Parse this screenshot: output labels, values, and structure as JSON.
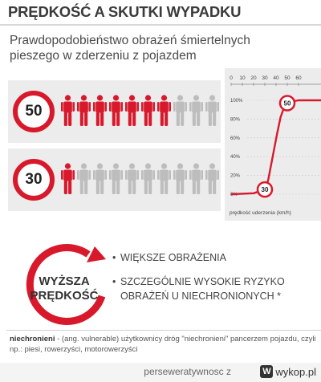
{
  "title": "PRĘDKOŚĆ A SKUTKI WYPADKU",
  "subtitle": "Prawdopodobieństwo obrażeń śmiertelnych pieszego w zderzeniu z pojazdem",
  "rows": [
    {
      "speed": "50",
      "red": 7,
      "total": 10
    },
    {
      "speed": "30",
      "red": 1,
      "total": 10
    }
  ],
  "colors": {
    "accent": "#d8192c",
    "grey": "#bdbdbd",
    "panel": "#ececec"
  },
  "chart_data": {
    "type": "line",
    "x_ticks": [
      "0",
      "10",
      "20",
      "30",
      "40",
      "50",
      "60"
    ],
    "y_ticks": [
      "100%",
      "80%",
      "60%",
      "40%",
      "20%",
      "0%"
    ],
    "xlabel": "prędkość uderzenia (km/h)",
    "xlim": [
      0,
      60
    ],
    "ylim": [
      0,
      100
    ],
    "x": [
      0,
      20,
      30,
      33,
      37,
      41,
      44,
      47,
      50,
      55,
      60
    ],
    "y": [
      0,
      1,
      5,
      15,
      40,
      65,
      82,
      92,
      97,
      99,
      100
    ],
    "markers": [
      {
        "label": "30",
        "x": 30,
        "y": 5
      },
      {
        "label": "50",
        "x": 50,
        "y": 97
      }
    ]
  },
  "bottom": {
    "badge_line1": "WYŻSZA",
    "badge_line2": "PRĘDKOŚĆ",
    "bullets": [
      "WIĘKSZE OBRAŻENIA",
      "SZCZEGÓLNIE WYSOKIE RYZYKO OBRAŻEŃ U NIECHRONIONYCH *"
    ]
  },
  "note": {
    "term": "niechronieni",
    "text": " - (ang. vulnerable) użytkownicy dróg \"niechronieni\" pancerzem pojazdu, czyli np.: piesi, rowerzyści, motorowerzyści"
  },
  "footer": {
    "user": "perseweratywnosc z",
    "logo_text": "wykop.pl",
    "logo_mark": "W"
  }
}
